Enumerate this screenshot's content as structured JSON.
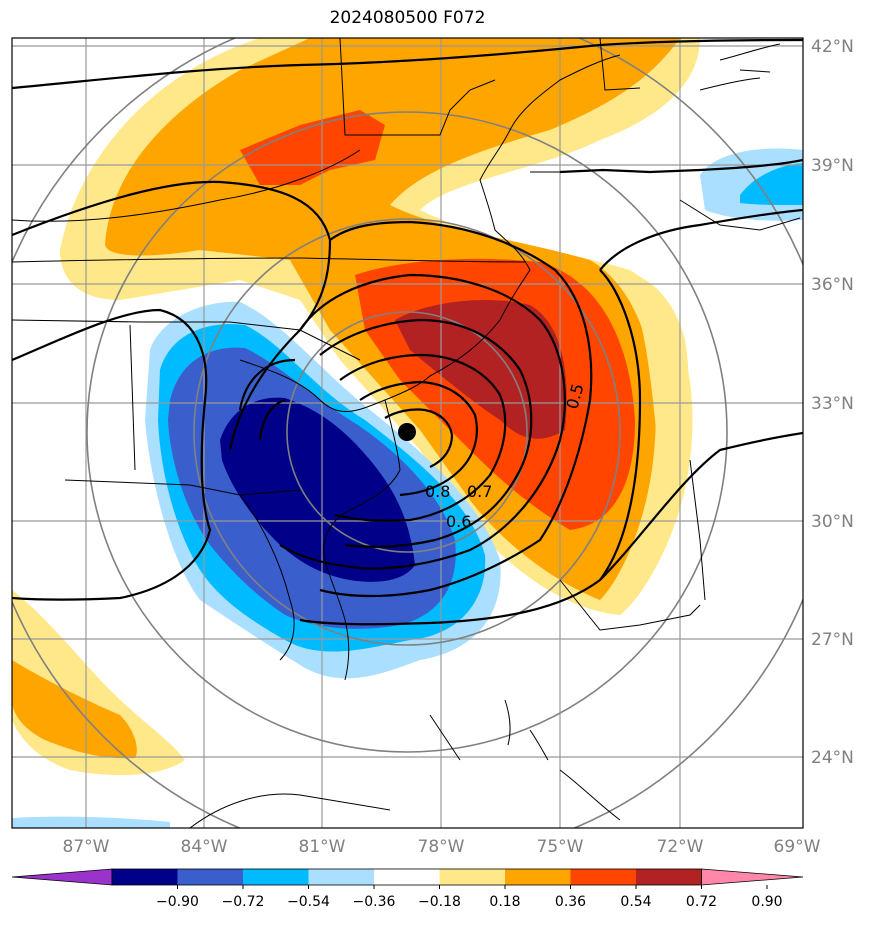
{
  "title": "2024080500 F072",
  "lat_labels": [
    "42°N",
    "39°N",
    "36°N",
    "33°N",
    "30°N",
    "27°N",
    "24°N"
  ],
  "lon_labels": [
    "87°W",
    "84°W",
    "81°W",
    "78°W",
    "75°W",
    "72°W",
    "69°W"
  ],
  "contour_labels": [
    "0.8",
    "0.7",
    "0.6",
    "0.5"
  ],
  "colorbar": {
    "labels": [
      "−0.90",
      "−0.72",
      "−0.54",
      "−0.36",
      "−0.18",
      "0.18",
      "0.36",
      "0.54",
      "0.72",
      "0.90"
    ],
    "colors": [
      "#9933cc",
      "#000088",
      "#3a5fcd",
      "#00bbff",
      "#aadfff",
      "#ffffff",
      "#ffe88a",
      "#ffa500",
      "#ff4500",
      "#b22222",
      "#ff88aa"
    ]
  },
  "colors": {
    "strong_negative": "#000088",
    "negative": "#3a5fcd",
    "moderate_negative": "#00bbff",
    "weak_negative": "#aadfff",
    "weak_positive": "#ffe88a",
    "moderate_positive": "#ffa500",
    "positive": "#ff4500",
    "strong_positive": "#b22222"
  },
  "marker": "storm-center-dot"
}
